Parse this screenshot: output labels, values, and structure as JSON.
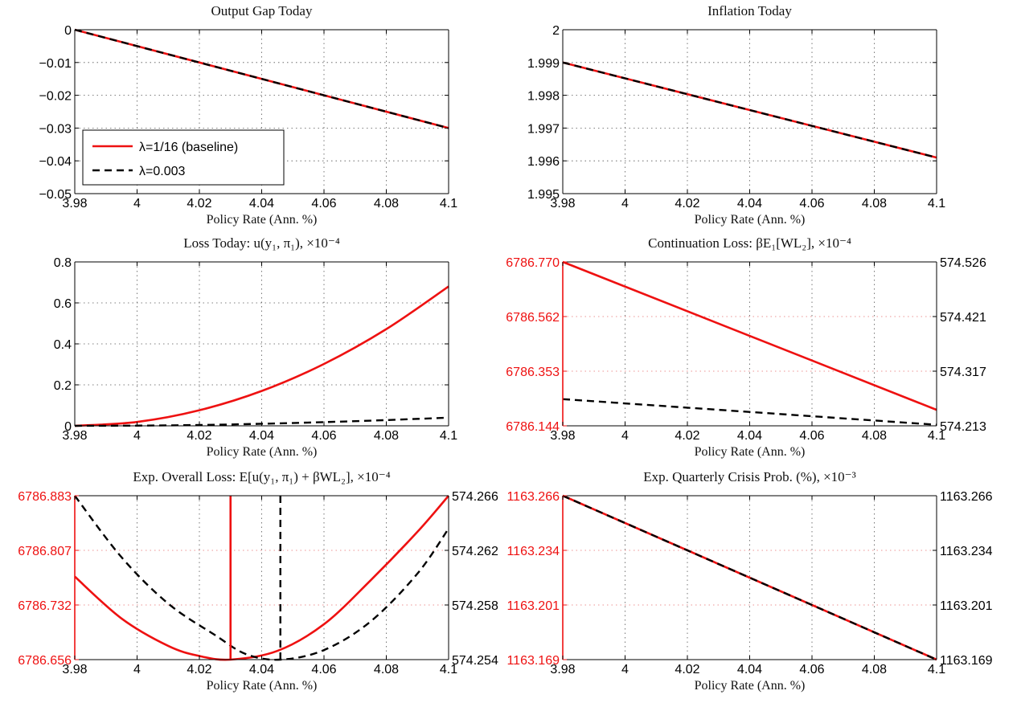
{
  "figure": {
    "colors": {
      "red": "#ee1111",
      "black": "#000000",
      "axis": "#000000",
      "grid": "#bbbbbb"
    }
  },
  "chart_data": [
    {
      "id": "output-gap",
      "type": "line",
      "title": "Output Gap Today",
      "xlabel": "Policy Rate (Ann. %)",
      "xlim": [
        3.98,
        4.1
      ],
      "xticks": [
        "3.98",
        "4",
        "4.02",
        "4.04",
        "4.06",
        "4.08",
        "4.1"
      ],
      "ylim": [
        -0.05,
        0
      ],
      "yticks": [
        "0",
        "−0.01",
        "−0.02",
        "−0.03",
        "−0.04",
        "−0.05"
      ],
      "grid": true,
      "legend": {
        "placement": "lower-left",
        "entries": [
          {
            "label": "λ=1/16 (baseline)",
            "style": "solid",
            "color": "#ee1111"
          },
          {
            "label": "λ=0.003",
            "style": "dashed",
            "color": "#000000"
          }
        ]
      },
      "series": [
        {
          "name": "λ=1/16 (baseline)",
          "style": "solid",
          "color": "#ee1111",
          "x": [
            3.98,
            4.1
          ],
          "y": [
            0,
            -0.03
          ]
        },
        {
          "name": "λ=0.003",
          "style": "dashed",
          "color": "#000000",
          "x": [
            3.98,
            4.1
          ],
          "y": [
            0,
            -0.03
          ]
        }
      ]
    },
    {
      "id": "inflation",
      "type": "line",
      "title": "Inflation Today",
      "xlabel": "Policy Rate (Ann. %)",
      "xlim": [
        3.98,
        4.1
      ],
      "xticks": [
        "3.98",
        "4",
        "4.02",
        "4.04",
        "4.06",
        "4.08",
        "4.1"
      ],
      "ylim": [
        1.995,
        2
      ],
      "yticks": [
        "2",
        "1.999",
        "1.998",
        "1.997",
        "1.996",
        "1.995"
      ],
      "grid": true,
      "series": [
        {
          "name": "λ=1/16 (baseline)",
          "style": "solid",
          "color": "#ee1111",
          "x": [
            3.98,
            4.1
          ],
          "y": [
            1.999,
            1.9961
          ]
        },
        {
          "name": "λ=0.003",
          "style": "dashed",
          "color": "#000000",
          "x": [
            3.98,
            4.1
          ],
          "y": [
            1.999,
            1.9961
          ]
        }
      ]
    },
    {
      "id": "loss-today",
      "type": "line",
      "title": "Loss Today: u(y₁, π₁), ×10⁻⁴",
      "xlabel": "Policy Rate (Ann. %)",
      "xlim": [
        3.98,
        4.1
      ],
      "xticks": [
        "3.98",
        "4",
        "4.02",
        "4.04",
        "4.06",
        "4.08",
        "4.1"
      ],
      "ylim": [
        0,
        0.8
      ],
      "yticks": [
        "0.8",
        "0.6",
        "0.4",
        "0.2",
        "0"
      ],
      "grid": true,
      "series": [
        {
          "name": "λ=1/16 (baseline)",
          "style": "solid",
          "color": "#ee1111",
          "x": [
            3.98,
            4.0,
            4.02,
            4.04,
            4.06,
            4.08,
            4.1
          ],
          "y": [
            0,
            0.019,
            0.076,
            0.17,
            0.302,
            0.472,
            0.68
          ]
        },
        {
          "name": "λ=0.003",
          "style": "dashed",
          "color": "#000000",
          "x": [
            3.98,
            4.0,
            4.02,
            4.04,
            4.06,
            4.08,
            4.1
          ],
          "y": [
            0,
            0.001,
            0.004,
            0.01,
            0.018,
            0.028,
            0.04
          ]
        }
      ]
    },
    {
      "id": "continuation-loss",
      "type": "line",
      "title": "Continuation Loss: βE₁[WL₂], ×10⁻⁴",
      "xlabel": "Policy Rate (Ann. %)",
      "xlim": [
        3.98,
        4.1
      ],
      "xticks": [
        "3.98",
        "4",
        "4.02",
        "4.04",
        "4.06",
        "4.08",
        "4.1"
      ],
      "ylim_left": [
        6786.144,
        6786.77
      ],
      "yticks_left": [
        "6786.770",
        "6786.562",
        "6786.353",
        "6786.144"
      ],
      "ylim_right": [
        574.213,
        574.526
      ],
      "yticks_right": [
        "574.526",
        "574.421",
        "574.317",
        "574.213"
      ],
      "grid": true,
      "series": [
        {
          "name": "λ=1/16 (baseline)",
          "style": "solid",
          "color": "#ee1111",
          "axis": "left",
          "x": [
            3.98,
            4.1
          ],
          "y": [
            6786.77,
            6786.205
          ]
        },
        {
          "name": "λ=0.003",
          "style": "dashed",
          "color": "#000000",
          "axis": "right",
          "x": [
            3.98,
            4.1
          ],
          "y": [
            574.264,
            574.215
          ]
        }
      ]
    },
    {
      "id": "overall-loss",
      "type": "line",
      "title": "Exp. Overall Loss: E[u(y₁, π₁) + βWL₂], ×10⁻⁴",
      "xlabel": "Policy Rate (Ann. %)",
      "xlim": [
        3.98,
        4.1
      ],
      "xticks": [
        "3.98",
        "4",
        "4.02",
        "4.04",
        "4.06",
        "4.08",
        "4.1"
      ],
      "ylim_left": [
        6786.656,
        6786.883
      ],
      "yticks_left": [
        "6786.883",
        "6786.807",
        "6786.732",
        "6786.656"
      ],
      "ylim_right": [
        574.254,
        574.266
      ],
      "yticks_right": [
        "574.266",
        "574.262",
        "574.258",
        "574.254"
      ],
      "grid": true,
      "series": [
        {
          "name": "λ=1/16 (baseline)",
          "style": "solid",
          "color": "#ee1111",
          "axis": "left",
          "x": [
            3.98,
            3.995,
            4.01,
            4.02,
            4.03,
            4.045,
            4.06,
            4.075,
            4.09,
            4.1
          ],
          "y": [
            6786.771,
            6786.713,
            6786.675,
            6786.661,
            6786.656,
            6786.668,
            6786.705,
            6786.766,
            6786.833,
            6786.883
          ]
        },
        {
          "name": "λ=0.003",
          "style": "dashed",
          "color": "#000000",
          "axis": "right",
          "x": [
            3.98,
            3.995,
            4.01,
            4.025,
            4.035,
            4.046,
            4.06,
            4.075,
            4.09,
            4.1
          ],
          "y": [
            574.266,
            574.2615,
            574.2581,
            574.2558,
            574.2544,
            574.254,
            574.2547,
            574.2568,
            574.2603,
            574.2636
          ]
        }
      ],
      "vlines": [
        {
          "name": "λ=1/16 (baseline)",
          "x": 4.03,
          "style": "solid",
          "color": "#ee1111"
        },
        {
          "name": "λ=0.003",
          "x": 4.046,
          "style": "dashed",
          "color": "#000000"
        }
      ]
    },
    {
      "id": "crisis-prob",
      "type": "line",
      "title": "Exp. Quarterly Crisis Prob. (%), ×10⁻³",
      "xlabel": "Policy Rate (Ann. %)",
      "xlim": [
        3.98,
        4.1
      ],
      "xticks": [
        "3.98",
        "4",
        "4.02",
        "4.04",
        "4.06",
        "4.08",
        "4.1"
      ],
      "ylim_left": [
        1163.169,
        1163.266
      ],
      "yticks_left": [
        "1163.266",
        "1163.234",
        "1163.201",
        "1163.169"
      ],
      "ylim_right": [
        1163.169,
        1163.266
      ],
      "yticks_right": [
        "1163.266",
        "1163.234",
        "1163.201",
        "1163.169"
      ],
      "grid": true,
      "series": [
        {
          "name": "λ=1/16 (baseline)",
          "style": "solid",
          "color": "#ee1111",
          "axis": "left",
          "x": [
            3.98,
            4.1
          ],
          "y": [
            1163.266,
            1163.169
          ]
        },
        {
          "name": "λ=0.003",
          "style": "dashed",
          "color": "#000000",
          "axis": "right",
          "x": [
            3.98,
            4.1
          ],
          "y": [
            1163.266,
            1163.169
          ]
        }
      ]
    }
  ]
}
